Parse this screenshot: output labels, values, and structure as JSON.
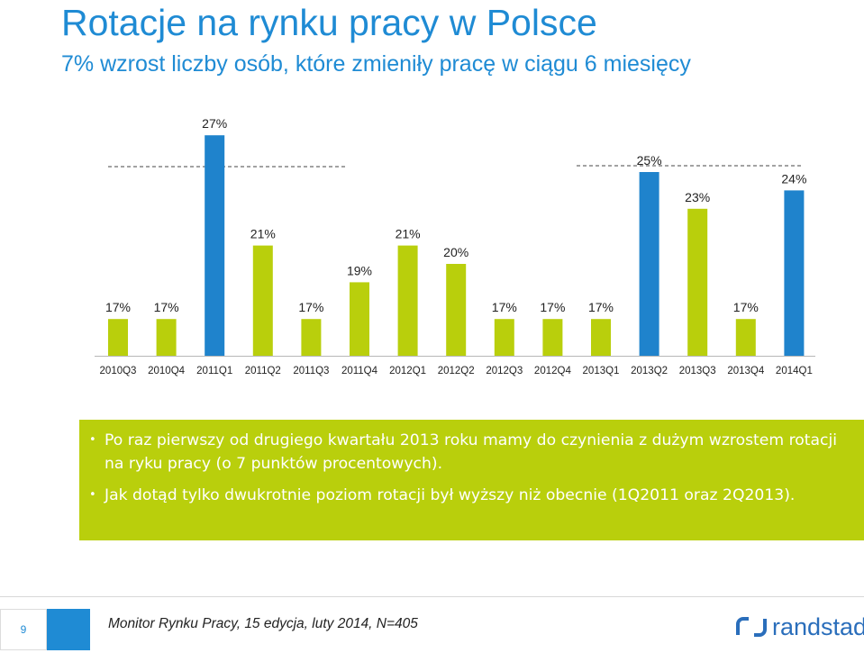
{
  "title": "Rotacje na rynku pracy w Polsce",
  "subtitle": "7% wzrost liczby osób, które zmieniły pracę w ciągu 6 miesięcy",
  "chart_data": {
    "type": "bar",
    "categories": [
      "2010Q3",
      "2010Q4",
      "2011Q1",
      "2011Q2",
      "2011Q3",
      "2011Q4",
      "2012Q1",
      "2012Q2",
      "2012Q3",
      "2012Q4",
      "2013Q1",
      "2013Q2",
      "2013Q3",
      "2013Q4",
      "2014Q1"
    ],
    "values": [
      17,
      17,
      27,
      21,
      17,
      19,
      21,
      20,
      17,
      17,
      17,
      25,
      23,
      17,
      24
    ],
    "value_labels": [
      "17%",
      "17%",
      "27%",
      "21%",
      "17%",
      "19%",
      "21%",
      "20%",
      "17%",
      "17%",
      "17%",
      "25%",
      "23%",
      "17%",
      "24%"
    ],
    "bar_colors": [
      "#b9cf0c",
      "#b9cf0c",
      "#1f83cc",
      "#b9cf0c",
      "#b9cf0c",
      "#b9cf0c",
      "#b9cf0c",
      "#b9cf0c",
      "#b9cf0c",
      "#b9cf0c",
      "#b9cf0c",
      "#1f83cc",
      "#b9cf0c",
      "#b9cf0c",
      "#1f83cc"
    ],
    "reference_lines": [
      {
        "value": 24,
        "style": "dashed"
      },
      {
        "value": 25,
        "style": "dashed"
      }
    ],
    "ylim": [
      0,
      27
    ]
  },
  "callout": {
    "bullets": [
      "Po raz pierwszy od drugiego kwartału 2013 roku mamy do czynienia z dużym wzrostem rotacji na ryku pracy (o 7 punktów procentowych).",
      "Jak dotąd tylko dwukrotnie poziom rotacji był wyższy niż obecnie (1Q2011 oraz 2Q2013)."
    ]
  },
  "footer": {
    "page_number": "9",
    "source": "Monitor Rynku Pracy, 15 edycja, luty 2014, N=405",
    "logo_text": "randstad"
  },
  "colors": {
    "blue": "#1f83cc",
    "green": "#b9cf0c"
  }
}
